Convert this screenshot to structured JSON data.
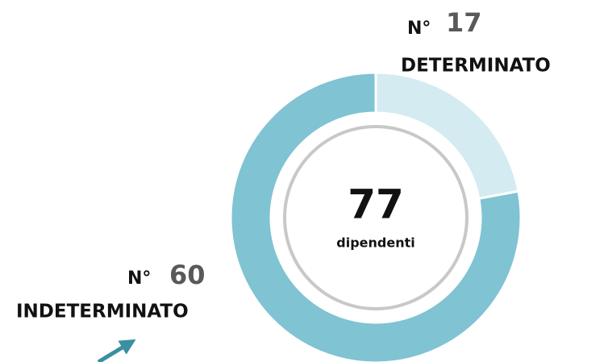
{
  "chart_data": {
    "type": "pie",
    "categories": [
      "DETERMINATO",
      "INDETERMINATO"
    ],
    "values": [
      17,
      60
    ],
    "colors": [
      "#d4ebf1",
      "#80c3d3"
    ],
    "number_prefix": "N°",
    "total": 77,
    "total_label": "dipendenti"
  }
}
